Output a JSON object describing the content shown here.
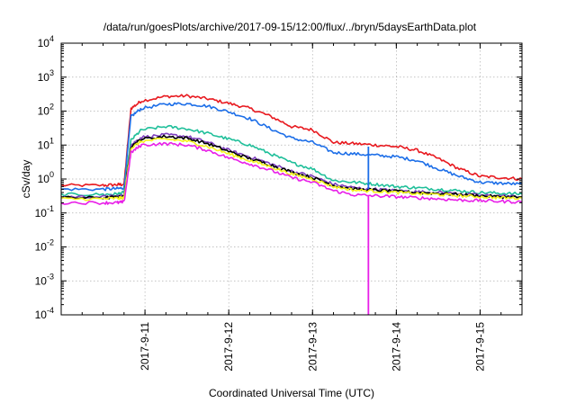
{
  "chart_data": {
    "type": "line",
    "title": "/data/run/goesPlots/archive/2017-09-15/12:00/flux/../bryn/5daysEarthData.plot",
    "xlabel": "Coordinated Universal Time (UTC)",
    "ylabel": "cSv/day",
    "y_scale": "log",
    "ylim": [
      0.0001,
      10000
    ],
    "xlim": [
      "2017-09-10 00:00",
      "2017-09-15 12:00"
    ],
    "grid": true,
    "legend": "none",
    "x_ticks": [
      "2017-9-11",
      "2017-9-12",
      "2017-9-13",
      "2017-9-14",
      "2017-9-15"
    ],
    "y_ticks": [
      {
        "base": "10",
        "exp": "-4",
        "value": 0.0001
      },
      {
        "base": "10",
        "exp": "-3",
        "value": 0.001
      },
      {
        "base": "10",
        "exp": "-2",
        "value": 0.01
      },
      {
        "base": "10",
        "exp": "-1",
        "value": 0.1
      },
      {
        "base": "10",
        "exp": "0",
        "value": 1
      },
      {
        "base": "10",
        "exp": "1",
        "value": 10
      },
      {
        "base": "10",
        "exp": "2",
        "value": 100
      },
      {
        "base": "10",
        "exp": "3",
        "value": 1000
      },
      {
        "base": "10",
        "exp": "4",
        "value": 10000
      }
    ],
    "x": [
      "2017-09-10 00:00",
      "2017-09-10 12:00",
      "2017-09-10 16:00",
      "2017-09-10 18:00",
      "2017-09-10 20:00",
      "2017-09-10 23:00",
      "2017-09-11 06:00",
      "2017-09-11 12:00",
      "2017-09-11 18:00",
      "2017-09-12 00:00",
      "2017-09-12 06:00",
      "2017-09-12 12:00",
      "2017-09-12 18:00",
      "2017-09-13 00:00",
      "2017-09-13 06:00",
      "2017-09-13 12:00",
      "2017-09-13 18:00",
      "2017-09-14 00:00",
      "2017-09-14 06:00",
      "2017-09-14 12:00",
      "2017-09-14 18:00",
      "2017-09-15 00:00",
      "2017-09-15 06:00",
      "2017-09-15 12:00"
    ],
    "series": [
      {
        "color": "#e8191f",
        "values": [
          0.65,
          0.65,
          0.68,
          0.7,
          120,
          200,
          270,
          280,
          230,
          170,
          120,
          70,
          35,
          28,
          12,
          11,
          10,
          9,
          7,
          4,
          2,
          1.2,
          1.1,
          1.0
        ]
      },
      {
        "color": "#1c6ee8",
        "values": [
          0.5,
          0.5,
          0.52,
          0.55,
          70,
          120,
          160,
          165,
          140,
          95,
          60,
          30,
          16,
          12,
          6,
          5.5,
          5,
          4.5,
          3.5,
          2,
          1.2,
          0.8,
          0.75,
          0.7
        ]
      },
      {
        "color": "#1fbf9a",
        "values": [
          0.35,
          0.35,
          0.36,
          0.4,
          14,
          28,
          35,
          30,
          22,
          15,
          10,
          5.5,
          3,
          2,
          0.9,
          0.8,
          0.7,
          0.6,
          0.55,
          0.5,
          0.45,
          0.4,
          0.38,
          0.36
        ]
      },
      {
        "color": "#7f3fbf",
        "values": [
          0.3,
          0.3,
          0.31,
          0.32,
          10,
          17,
          20,
          18,
          12,
          7,
          4.5,
          2.8,
          1.7,
          1.2,
          0.7,
          0.55,
          0.5,
          0.45,
          0.42,
          0.4,
          0.37,
          0.33,
          0.32,
          0.3
        ]
      },
      {
        "color": "#000000",
        "values": [
          0.28,
          0.28,
          0.29,
          0.3,
          9,
          15,
          18,
          16,
          11,
          6.5,
          4,
          2.6,
          1.6,
          1.1,
          0.65,
          0.5,
          0.47,
          0.43,
          0.4,
          0.38,
          0.35,
          0.32,
          0.3,
          0.29
        ]
      },
      {
        "color": "#f5f51e",
        "values": [
          0.26,
          0.26,
          0.27,
          0.28,
          8,
          13,
          15,
          13,
          9,
          5.5,
          3.5,
          2.3,
          1.4,
          1.0,
          0.6,
          0.47,
          0.44,
          0.4,
          0.37,
          0.35,
          0.32,
          0.3,
          0.28,
          0.27
        ]
      },
      {
        "color": "#e81fe8",
        "values": [
          0.2,
          0.2,
          0.2,
          0.21,
          6,
          10,
          11,
          10,
          7,
          4.2,
          2.8,
          1.8,
          1.1,
          0.8,
          0.45,
          0.34,
          0.32,
          0.3,
          0.28,
          0.26,
          0.24,
          0.23,
          0.22,
          0.21
        ]
      }
    ],
    "spikes": [
      {
        "color": "#e81fe8",
        "x": "2017-09-13 16:00",
        "low": 0.0001
      },
      {
        "color": "#1c6ee8",
        "x": "2017-09-13 16:00",
        "low": 0.5,
        "high": 9
      }
    ]
  }
}
